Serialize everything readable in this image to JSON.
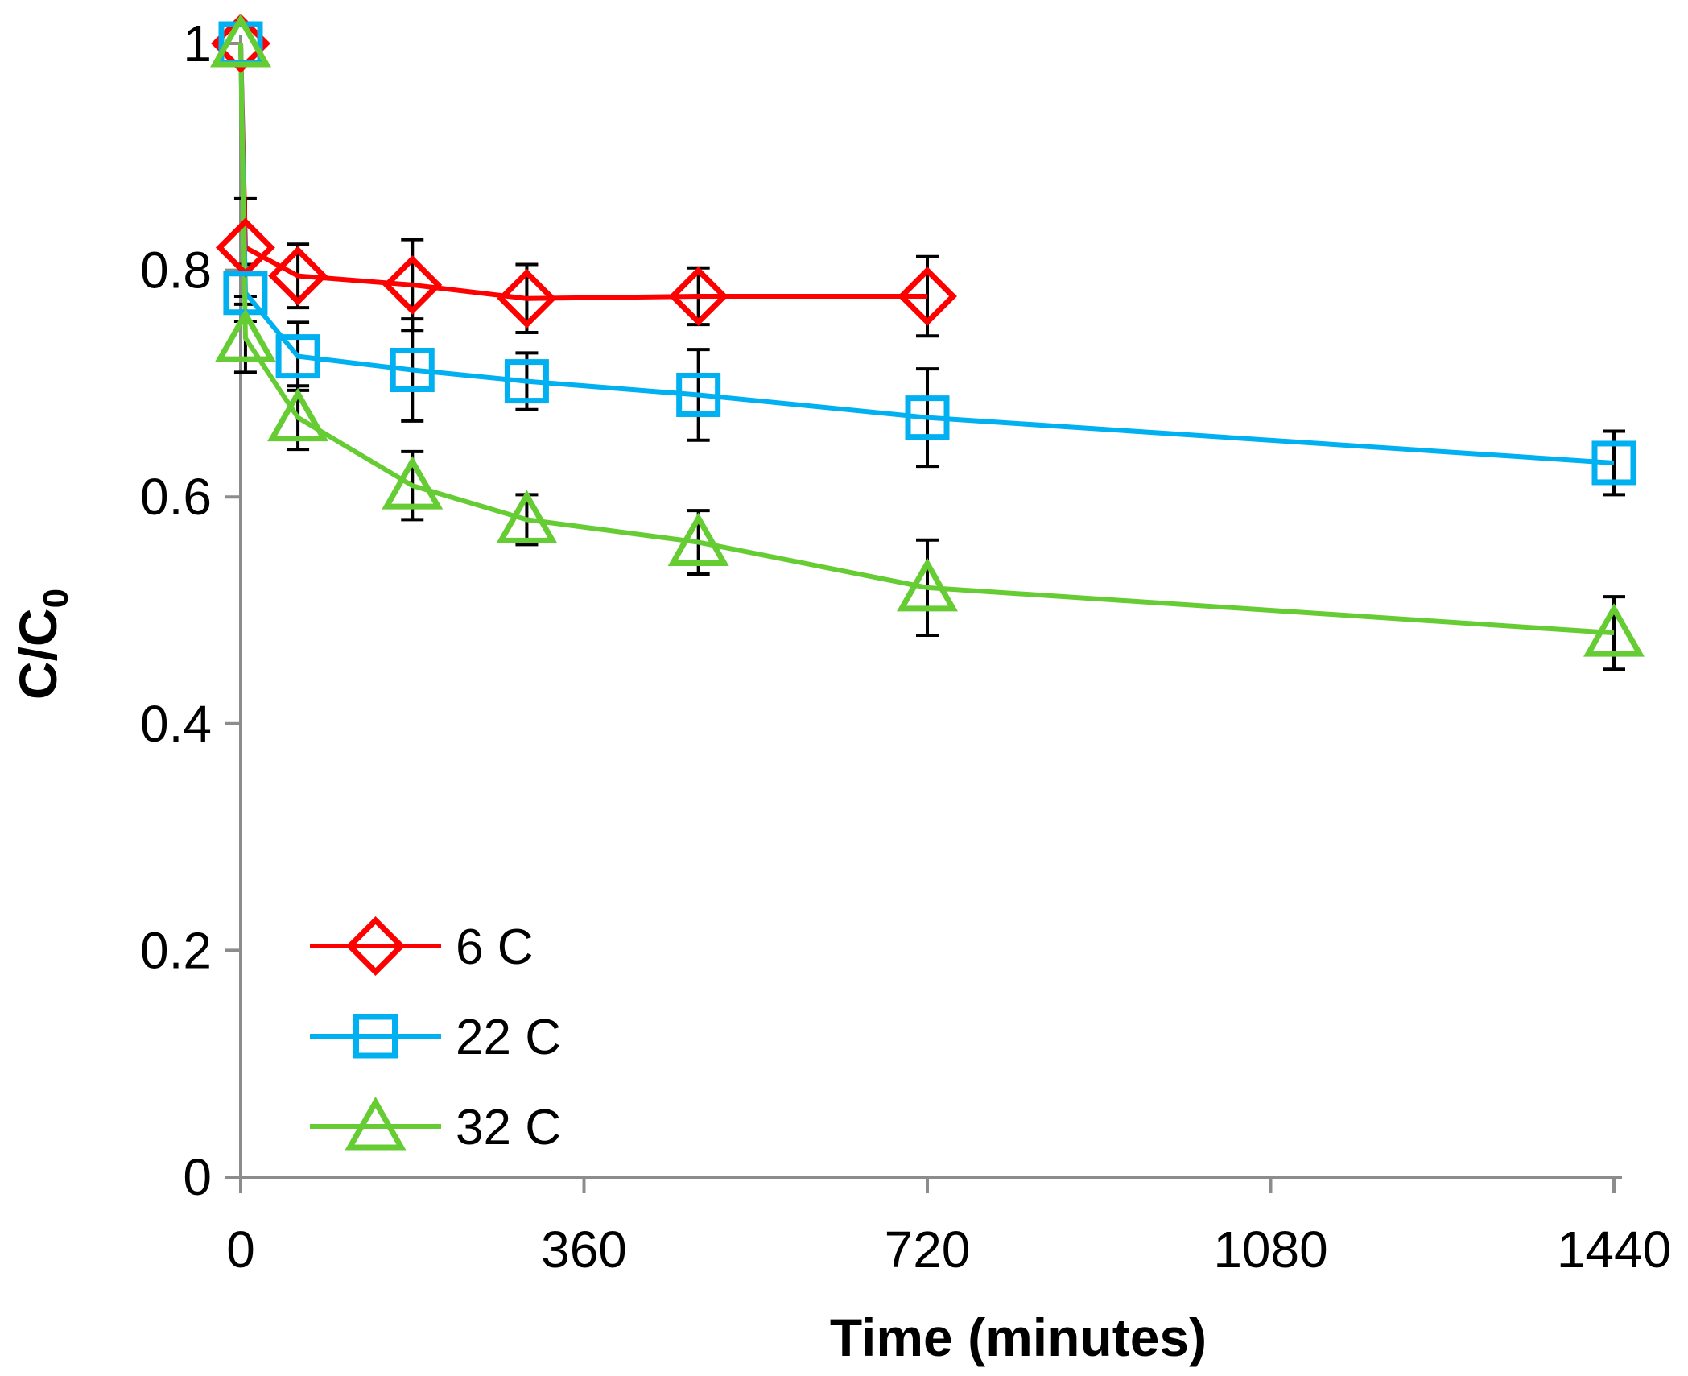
{
  "chart_data": {
    "type": "line",
    "title": "",
    "xlabel": "Time (minutes)",
    "ylabel_main": "C/C",
    "ylabel_sub": "0",
    "xlim": [
      0,
      1440
    ],
    "ylim": [
      0,
      1
    ],
    "x_ticks": [
      0,
      360,
      720,
      1080,
      1440
    ],
    "x_tick_labels": [
      "0",
      "360",
      "720",
      "1080",
      "1440"
    ],
    "y_ticks": [
      0,
      0.2,
      0.4,
      0.6,
      0.8,
      1
    ],
    "y_tick_labels": [
      "0",
      "0.2",
      "0.4",
      "0.6",
      "0.8",
      "1"
    ],
    "grid": false,
    "legend_position": "bottom-left",
    "series": [
      {
        "name": "6 C",
        "color": "#ff0000",
        "marker": "diamond",
        "x": [
          0,
          5,
          60,
          180,
          300,
          480,
          720
        ],
        "y": [
          1.0,
          0.82,
          0.795,
          0.787,
          0.775,
          0.777,
          0.777
        ],
        "err": [
          0.0,
          0.043,
          0.028,
          0.04,
          0.03,
          0.025,
          0.035
        ]
      },
      {
        "name": "22 C",
        "color": "#00b0f0",
        "marker": "square",
        "x": [
          0,
          5,
          60,
          180,
          300,
          480,
          720,
          1440
        ],
        "y": [
          1.0,
          0.78,
          0.724,
          0.712,
          0.702,
          0.69,
          0.67,
          0.63
        ],
        "err": [
          0.0,
          0.025,
          0.03,
          0.045,
          0.025,
          0.04,
          0.043,
          0.028
        ]
      },
      {
        "name": "32 C",
        "color": "#66cc33",
        "marker": "triangle",
        "x": [
          0,
          5,
          60,
          180,
          300,
          480,
          720,
          1440
        ],
        "y": [
          1.0,
          0.74,
          0.67,
          0.61,
          0.58,
          0.56,
          0.52,
          0.48
        ],
        "err": [
          0.0,
          0.03,
          0.028,
          0.03,
          0.022,
          0.028,
          0.042,
          0.032
        ]
      }
    ]
  }
}
